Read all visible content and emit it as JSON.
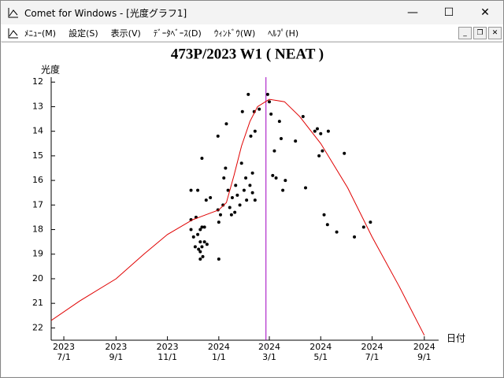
{
  "window": {
    "title": "Comet for Windows - [光度グラフ1]",
    "menu": [
      "ﾒﾆｭｰ(M)",
      "設定(S)",
      "表示(V)",
      "ﾃﾞｰﾀﾍﾞｰｽ(D)",
      "ｳｨﾝﾄﾞｳ(W)",
      "ﾍﾙﾌﾟ(H)"
    ]
  },
  "chart_data": {
    "type": "scatter",
    "title": "473P/2023 W1 ( NEAT )",
    "y_label": "光度",
    "x_label": "日付",
    "xlim": [
      "2023-06-16",
      "2024-09-18"
    ],
    "ylim": [
      22.5,
      11.8
    ],
    "yticks": [
      12,
      13,
      14,
      15,
      16,
      17,
      18,
      19,
      20,
      21,
      22
    ],
    "xticks": [
      {
        "value": "2023-07-01",
        "label": "2023\n7/1"
      },
      {
        "value": "2023-09-01",
        "label": "2023\n9/1"
      },
      {
        "value": "2023-11-01",
        "label": "2023\n11/1"
      },
      {
        "value": "2024-01-01",
        "label": "2024\n1/1"
      },
      {
        "value": "2024-03-01",
        "label": "2024\n3/1"
      },
      {
        "value": "2024-05-01",
        "label": "2024\n5/1"
      },
      {
        "value": "2024-07-01",
        "label": "2024\n7/1"
      },
      {
        "value": "2024-09-01",
        "label": "2024\n9/1"
      }
    ],
    "vline": {
      "x": "2024-02-26",
      "color": "#a000c0"
    },
    "series": [
      {
        "kind": "points",
        "color": "#000000",
        "x": [
          "2023-11-29",
          "2023-12-07",
          "2023-11-29",
          "2023-12-05",
          "2023-11-29",
          "2023-12-02",
          "2023-12-07",
          "2023-12-10",
          "2023-12-12",
          "2023-12-15",
          "2023-12-10",
          "2023-12-12",
          "2023-12-15",
          "2023-12-18",
          "2023-12-04",
          "2023-12-08",
          "2023-12-10",
          "2023-12-13",
          "2023-12-10",
          "2023-12-12",
          "2023-12-17",
          "2023-12-22",
          "2023-12-31",
          "2024-01-01",
          "2024-01-01",
          "2024-01-03",
          "2023-12-31",
          "2024-01-06",
          "2024-01-07",
          "2024-01-09",
          "2024-01-10",
          "2024-01-12",
          "2024-01-14",
          "2024-01-16",
          "2024-01-17",
          "2024-01-20",
          "2024-01-21",
          "2024-01-23",
          "2024-01-26",
          "2024-01-28",
          "2024-01-29",
          "2024-01-31",
          "2024-02-02",
          "2024-02-03",
          "2024-02-05",
          "2024-02-07",
          "2024-02-08",
          "2024-02-10",
          "2024-02-10",
          "2024-02-12",
          "2024-02-13",
          "2024-02-13",
          "2024-02-18",
          "2024-02-28",
          "2024-03-01",
          "2024-03-03",
          "2024-03-05",
          "2024-03-07",
          "2024-03-09",
          "2024-03-13",
          "2024-03-15",
          "2024-03-17",
          "2024-03-20",
          "2024-04-01",
          "2024-04-10",
          "2024-04-13",
          "2024-04-24",
          "2024-04-27",
          "2024-05-01",
          "2024-05-03",
          "2024-04-29",
          "2024-05-05",
          "2024-05-09",
          "2024-05-10",
          "2024-05-20",
          "2024-05-29",
          "2024-06-10",
          "2024-06-21",
          "2024-06-29"
        ],
        "values": [
          16.4,
          16.4,
          18.0,
          17.5,
          17.6,
          18.3,
          18.2,
          18.0,
          17.9,
          17.9,
          18.5,
          18.7,
          18.5,
          18.6,
          18.7,
          18.8,
          18.9,
          19.1,
          19.2,
          15.1,
          16.8,
          16.7,
          14.2,
          19.2,
          17.7,
          17.4,
          17.2,
          17.0,
          15.9,
          15.5,
          13.7,
          16.4,
          17.1,
          17.4,
          16.7,
          17.3,
          16.2,
          16.6,
          17.0,
          15.3,
          13.2,
          16.4,
          15.9,
          16.8,
          12.5,
          16.2,
          14.2,
          15.7,
          16.5,
          13.2,
          14.0,
          16.8,
          13.1,
          12.5,
          12.8,
          13.3,
          15.8,
          14.8,
          15.9,
          13.6,
          14.3,
          16.4,
          16.0,
          14.4,
          13.4,
          16.3,
          14.0,
          13.9,
          14.1,
          14.8,
          15.0,
          17.4,
          17.8,
          14.0,
          18.1,
          14.9,
          18.3,
          17.9,
          17.7
        ]
      },
      {
        "kind": "line",
        "color": "#e00000",
        "x": [
          "2023-06-16",
          "2023-07-20",
          "2023-09-01",
          "2023-10-04",
          "2023-11-01",
          "2023-12-01",
          "2024-01-01",
          "2024-01-10",
          "2024-01-19",
          "2024-01-28",
          "2024-02-07",
          "2024-02-16",
          "2024-03-01",
          "2024-03-19",
          "2024-04-06",
          "2024-05-01",
          "2024-06-02",
          "2024-07-01",
          "2024-08-02",
          "2024-09-01"
        ],
        "values": [
          21.7,
          20.9,
          20.0,
          19.0,
          18.2,
          17.6,
          17.2,
          16.9,
          15.8,
          14.6,
          13.6,
          13.0,
          12.7,
          12.8,
          13.4,
          14.5,
          16.3,
          18.3,
          20.3,
          22.3
        ]
      }
    ]
  }
}
